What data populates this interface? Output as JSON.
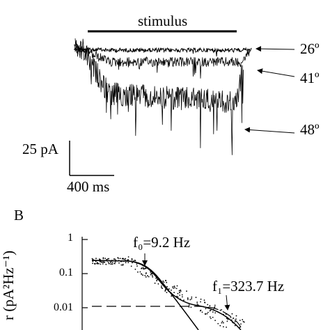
{
  "panel_a": {
    "stimulus_label": "stimulus",
    "temperatures": [
      "26º",
      "41º",
      "48º"
    ],
    "scale_bar_current": "25 pA",
    "scale_bar_time": "400 ms"
  },
  "panel_b": {
    "label": "B",
    "y_axis_label": "r (pA²Hz⁻¹)",
    "y_ticks": [
      "1",
      "0.1",
      "0.01"
    ],
    "annotations": {
      "f0": "f₀=9.2  Hz",
      "f1": "f₁=323.7 Hz"
    }
  }
}
